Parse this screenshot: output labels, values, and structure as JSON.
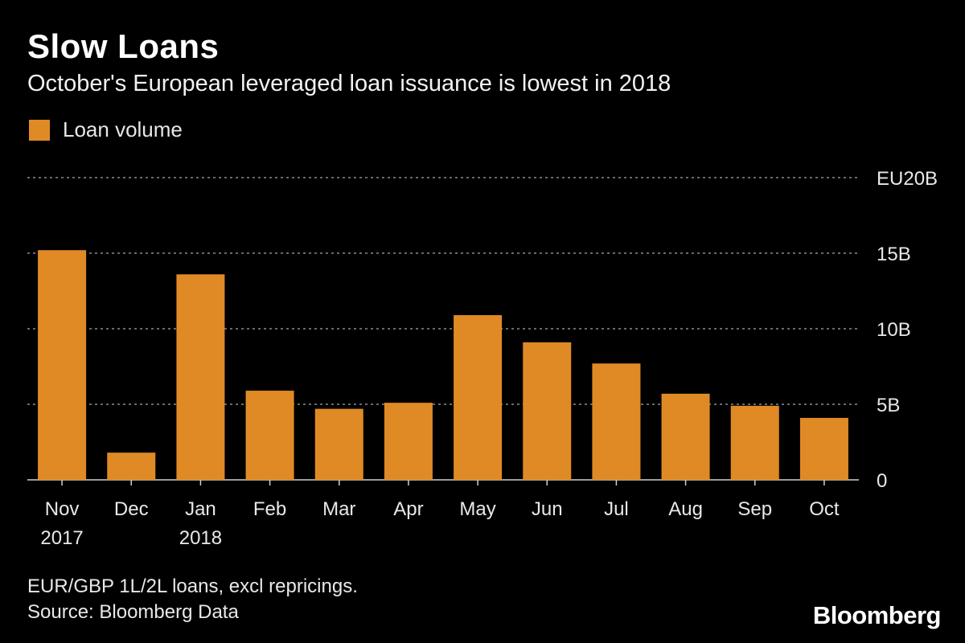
{
  "header": {
    "title": "Slow Loans",
    "subtitle": "October's European leveraged loan issuance is lowest in 2018"
  },
  "footer": {
    "note": "EUR/GBP 1L/2L loans, excl repricings.",
    "source": "Source: Bloomberg Data",
    "brand": "Bloomberg"
  },
  "colors": {
    "background": "#000000",
    "bar": "#E08A26",
    "grid": "#8c8c8c",
    "text": "#e8e8e8"
  },
  "chart_data": {
    "type": "bar",
    "title": "Slow Loans",
    "subtitle": "October's European leveraged loan issuance is lowest in 2018",
    "categories": [
      "Nov 2017",
      "Dec",
      "Jan 2018",
      "Feb",
      "Mar",
      "Apr",
      "May",
      "Jun",
      "Jul",
      "Aug",
      "Sep",
      "Oct"
    ],
    "category_lines": [
      [
        "Nov",
        "2017"
      ],
      [
        "Dec"
      ],
      [
        "Jan",
        "2018"
      ],
      [
        "Feb"
      ],
      [
        "Mar"
      ],
      [
        "Apr"
      ],
      [
        "May"
      ],
      [
        "Jun"
      ],
      [
        "Jul"
      ],
      [
        "Aug"
      ],
      [
        "Sep"
      ],
      [
        "Oct"
      ]
    ],
    "series": [
      {
        "name": "Loan volume",
        "values": [
          15.2,
          1.8,
          13.6,
          5.9,
          4.7,
          5.1,
          10.9,
          9.1,
          7.7,
          5.7,
          4.9,
          4.1
        ]
      }
    ],
    "ylim": [
      0,
      20
    ],
    "yticks": [
      0,
      5,
      10,
      15,
      20
    ],
    "ytick_labels": [
      "0",
      "5B",
      "10B",
      "15B",
      "EU20B"
    ],
    "ylabel": "",
    "xlabel": "",
    "grid": true,
    "legend": "top-left"
  }
}
